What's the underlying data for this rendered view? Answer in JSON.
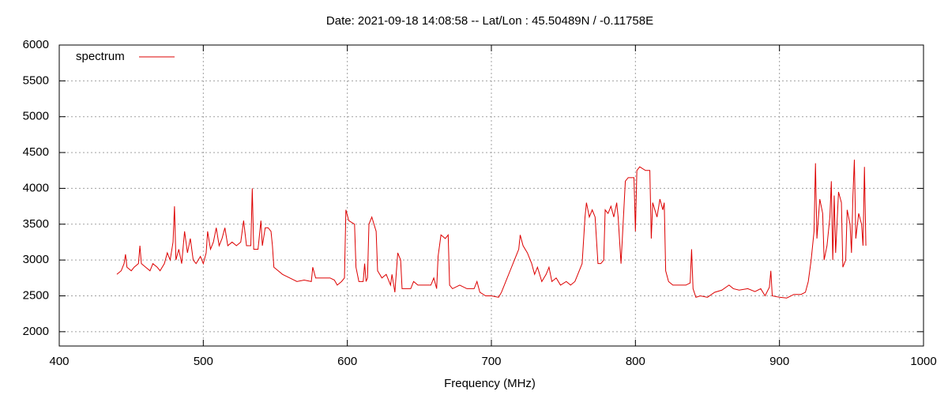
{
  "chart_data": {
    "type": "line",
    "title": "Date: 2021-09-18 14:08:58  --  Lat/Lon : 45.50489N / -0.11758E",
    "x_label": "Frequency (MHz)",
    "x": [
      440,
      443,
      445,
      446,
      447,
      450,
      452,
      455,
      456,
      457,
      460,
      463,
      465,
      468,
      470,
      473,
      475,
      477,
      479,
      480,
      481,
      483,
      485,
      487,
      489,
      491,
      493,
      495,
      498,
      500,
      502,
      503,
      505,
      507,
      509,
      511,
      513,
      515,
      517,
      520,
      523,
      526,
      528,
      530,
      533,
      534,
      535,
      538,
      540,
      541,
      543,
      545,
      547,
      548,
      549,
      552,
      555,
      560,
      565,
      570,
      575,
      576,
      578,
      583,
      588,
      591,
      593,
      596,
      598,
      599,
      601,
      605,
      606,
      608,
      611,
      612,
      613,
      614,
      615,
      617,
      620,
      621,
      624,
      627,
      630,
      631,
      633,
      635,
      637,
      638,
      641,
      644,
      646,
      649,
      652,
      655,
      658,
      660,
      662,
      663,
      665,
      668,
      670,
      671,
      673,
      678,
      683,
      688,
      690,
      692,
      696,
      700,
      705,
      707,
      710,
      713,
      717,
      719,
      720,
      722,
      725,
      728,
      730,
      732,
      735,
      738,
      740,
      742,
      745,
      748,
      752,
      755,
      758,
      760,
      763,
      765,
      766,
      768,
      770,
      772,
      774,
      776,
      778,
      779,
      781,
      783,
      785,
      787,
      788,
      790,
      793,
      795,
      797,
      799,
      800,
      801,
      803,
      807,
      810,
      811,
      812,
      815,
      817,
      819,
      820,
      821,
      823,
      826,
      830,
      835,
      838,
      839,
      840,
      842,
      845,
      850,
      855,
      860,
      865,
      868,
      872,
      878,
      883,
      887,
      890,
      893,
      894,
      895,
      900,
      905,
      910,
      915,
      918,
      920,
      922,
      924,
      925,
      926,
      928,
      930,
      931,
      933,
      935,
      936,
      937,
      938,
      939,
      941,
      943,
      944,
      946,
      947,
      949,
      950,
      951,
      952,
      953,
      955,
      957,
      958,
      959,
      960
    ],
    "series": [
      {
        "name": "spectrum",
        "color": "#dd0000",
        "values": [
          2800,
          2850,
          2950,
          3080,
          2900,
          2850,
          2900,
          2950,
          3200,
          2950,
          2900,
          2850,
          2950,
          2900,
          2850,
          2950,
          3100,
          3000,
          3250,
          3750,
          3000,
          3150,
          2950,
          3400,
          3100,
          3300,
          3000,
          2950,
          3050,
          2950,
          3100,
          3400,
          3150,
          3250,
          3450,
          3200,
          3300,
          3450,
          3200,
          3250,
          3200,
          3250,
          3550,
          3200,
          3200,
          4000,
          3150,
          3150,
          3550,
          3200,
          3450,
          3450,
          3400,
          3200,
          2900,
          2850,
          2800,
          2750,
          2700,
          2720,
          2700,
          2900,
          2750,
          2750,
          2750,
          2720,
          2650,
          2700,
          2750,
          3700,
          3550,
          3500,
          2900,
          2700,
          2700,
          2950,
          2700,
          2750,
          3500,
          3600,
          3400,
          2850,
          2750,
          2800,
          2650,
          2800,
          2550,
          3100,
          3000,
          2600,
          2600,
          2600,
          2700,
          2650,
          2650,
          2650,
          2650,
          2750,
          2600,
          3050,
          3350,
          3300,
          3350,
          2650,
          2600,
          2650,
          2600,
          2600,
          2700,
          2550,
          2500,
          2500,
          2480,
          2550,
          2700,
          2850,
          3050,
          3150,
          3350,
          3200,
          3100,
          2950,
          2800,
          2900,
          2700,
          2800,
          2900,
          2700,
          2750,
          2650,
          2700,
          2650,
          2700,
          2800,
          2950,
          3600,
          3800,
          3600,
          3700,
          3600,
          2950,
          2950,
          3000,
          3700,
          3650,
          3750,
          3600,
          3800,
          3600,
          2950,
          4100,
          4150,
          4150,
          4150,
          3400,
          4250,
          4300,
          4250,
          4250,
          3300,
          3800,
          3600,
          3850,
          3700,
          3800,
          2850,
          2700,
          2650,
          2650,
          2650,
          2680,
          3150,
          2600,
          2480,
          2500,
          2480,
          2550,
          2580,
          2650,
          2600,
          2580,
          2600,
          2560,
          2600,
          2500,
          2620,
          2850,
          2500,
          2480,
          2470,
          2520,
          2520,
          2550,
          2700,
          3000,
          3400,
          4350,
          3300,
          3850,
          3650,
          3000,
          3200,
          3600,
          4100,
          3000,
          3900,
          3100,
          3950,
          3800,
          2900,
          3000,
          3700,
          3500,
          3100,
          3900,
          4400,
          3300,
          3650,
          3500,
          3200,
          4300,
          3200
        ]
      }
    ],
    "xlim": [
      400,
      1000
    ],
    "xticks": [
      400,
      500,
      600,
      700,
      800,
      900,
      1000
    ],
    "ylim": [
      1800,
      6000
    ],
    "yticks": [
      2000,
      2500,
      3000,
      3500,
      4000,
      4500,
      5000,
      5500,
      6000
    ],
    "grid": true,
    "legend": "top-left"
  }
}
